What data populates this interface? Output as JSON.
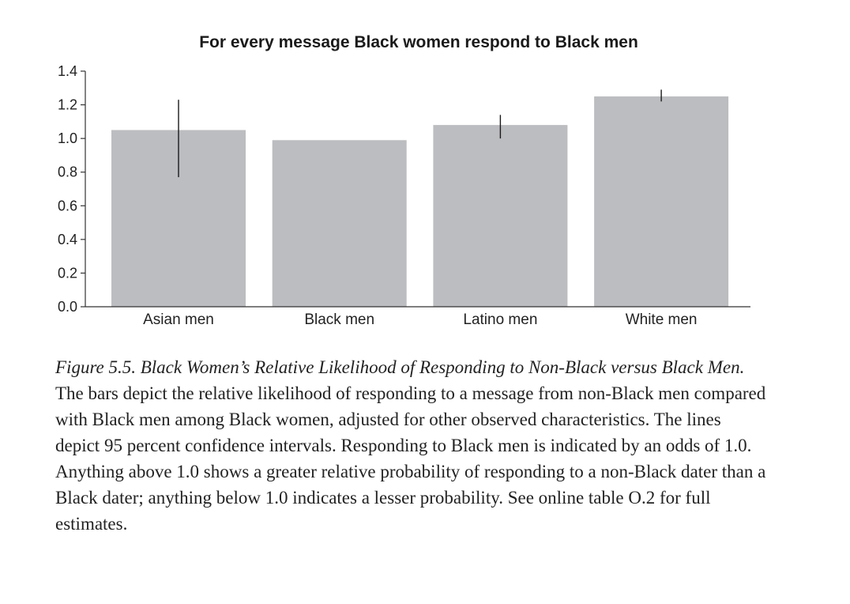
{
  "chart_data": {
    "type": "bar",
    "title": "For every message Black women respond to Black men",
    "xlabel": "",
    "ylabel": "",
    "categories": [
      "Asian men",
      "Black men",
      "Latino men",
      "White men"
    ],
    "values": [
      1.05,
      0.99,
      1.08,
      1.25
    ],
    "error_bars": [
      {
        "low": 0.77,
        "high": 1.23
      },
      null,
      {
        "low": 1.0,
        "high": 1.14
      },
      {
        "low": 1.22,
        "high": 1.29
      }
    ],
    "ylim": [
      0,
      1.4
    ],
    "yticks": [
      "0.0",
      "0.2",
      "0.4",
      "0.6",
      "0.8",
      "1.0",
      "1.2",
      "1.4"
    ],
    "grid": false,
    "bar_color": "#bcbdc0",
    "error_bar_color": "#1a1a1a"
  },
  "caption": {
    "figure_title": "Figure 5.5. Black Women’s Relative Likelihood of Responding to Non-Black versus Black Men.",
    "text": " The bars depict the relative likelihood of responding to a message from non-Black men compared with Black men among Black women, adjusted for other observed characteristics. The lines depict 95 percent confidence intervals. Responding to Black men is indicated by an odds of 1.0. Anything above 1.0 shows a greater relative probability of responding to a non-Black dater than a Black dater; anything below 1.0 indicates a lesser probability. See online table O.2 for full estimates."
  }
}
